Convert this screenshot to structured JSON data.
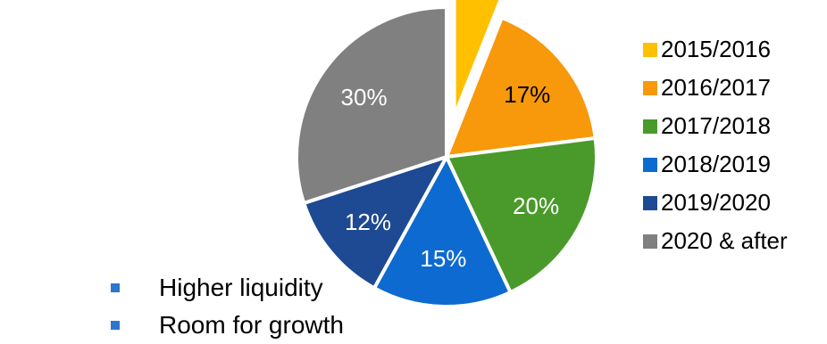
{
  "chart_data": {
    "type": "pie",
    "title": "",
    "slices": [
      {
        "label": "2015/2016",
        "value": 6,
        "display": "6%",
        "color": "#ffc000",
        "exploded": true,
        "label_color": "#000000"
      },
      {
        "label": "2016/2017",
        "value": 17,
        "display": "17%",
        "color": "#f7990b",
        "exploded": false,
        "label_color": "#000000"
      },
      {
        "label": "2017/2018",
        "value": 20,
        "display": "20%",
        "color": "#4a9a2b",
        "exploded": false,
        "label_color": "#ffffff"
      },
      {
        "label": "2018/2019",
        "value": 15,
        "display": "15%",
        "color": "#0d6ad0",
        "exploded": false,
        "label_color": "#ffffff"
      },
      {
        "label": "2019/2020",
        "value": 12,
        "display": "12%",
        "color": "#1e4993",
        "exploded": false,
        "label_color": "#ffffff"
      },
      {
        "label": "2020 & after",
        "value": 30,
        "display": "30%",
        "color": "#808080",
        "exploded": false,
        "label_color": "#ffffff"
      }
    ],
    "legend_position": "right"
  },
  "bullets": [
    {
      "text": "Higher liquidity"
    },
    {
      "text": "Room for growth"
    }
  ],
  "colors": {
    "bullet_marker": "#2e75d0",
    "slice_border": "#ffffff"
  }
}
